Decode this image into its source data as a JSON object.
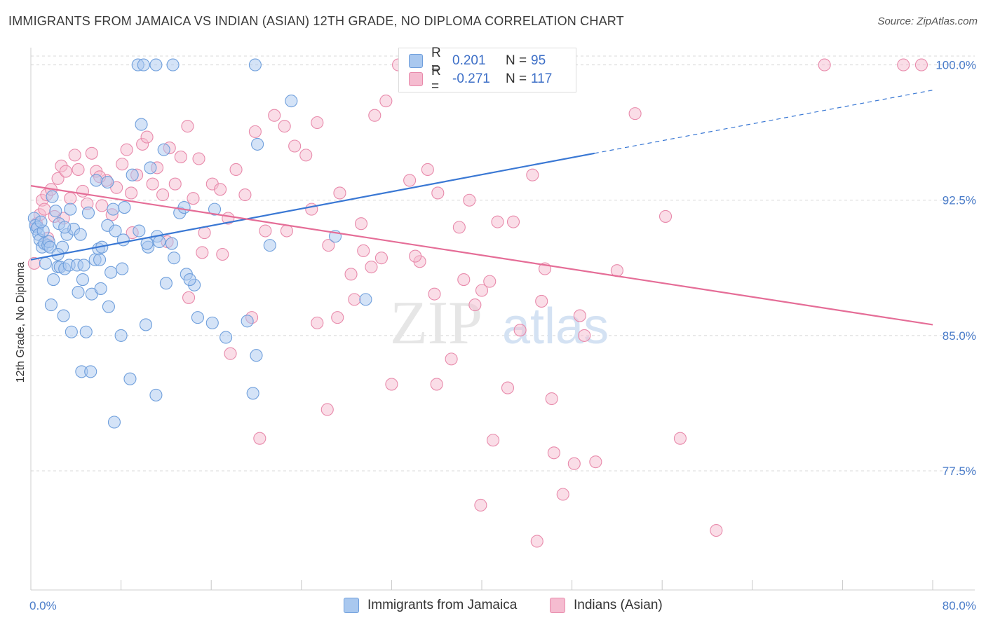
{
  "header": {
    "title": "IMMIGRANTS FROM JAMAICA VS INDIAN (ASIAN) 12TH GRADE, NO DIPLOMA CORRELATION CHART",
    "source": "Source: ZipAtlas.com"
  },
  "legend": {
    "rows": [
      {
        "r_label": "R =",
        "r_value": "0.201",
        "n_label": "N =",
        "n_value": "95"
      },
      {
        "r_label": "R =",
        "r_value": "-0.271",
        "n_label": "N =",
        "n_value": "117"
      }
    ]
  },
  "watermark": {
    "zip": "ZIP",
    "atlas": "atlas"
  },
  "colors": {
    "blue_fill": "#a9c8ef",
    "blue_stroke": "#6f9fdc",
    "blue_line": "#3a78d4",
    "pink_fill": "#f5bcd0",
    "pink_stroke": "#e88aab",
    "pink_line": "#e56d97",
    "tick_label": "#4a7cc9",
    "grid": "#d8d8d8"
  },
  "chart_data": {
    "type": "scatter",
    "title": "IMMIGRANTS FROM JAMAICA VS INDIAN (ASIAN) 12TH GRADE, NO DIPLOMA CORRELATION CHART",
    "xlabel": "",
    "ylabel": "12th Grade, No Diploma",
    "xlim": [
      0,
      80
    ],
    "ylim": [
      70.9,
      100.8
    ],
    "x_tick_labels": [
      "0.0%",
      "80.0%"
    ],
    "y_ticks": [
      100.0,
      92.5,
      85.0,
      77.5
    ],
    "y_tick_labels": [
      "100.0%",
      "92.5%",
      "85.0%",
      "77.5%"
    ],
    "grid": true,
    "legend_position": "bottom",
    "series": [
      {
        "name": "Immigrants from Jamaica",
        "color": "blue",
        "regression": {
          "x0": 0,
          "y0": 89.2,
          "x1": 50,
          "y1": 95.1,
          "dash_to_x": 80,
          "dash_to_y": 98.6
        },
        "points": [
          [
            0.3,
            91.5
          ],
          [
            0.4,
            91.1
          ],
          [
            0.5,
            90.9
          ],
          [
            0.6,
            91.0
          ],
          [
            0.7,
            90.6
          ],
          [
            0.8,
            90.3
          ],
          [
            1.0,
            89.9
          ],
          [
            1.2,
            90.1
          ],
          [
            1.3,
            89.0
          ],
          [
            1.5,
            90.0
          ],
          [
            1.6,
            90.2
          ],
          [
            1.7,
            89.9
          ],
          [
            1.9,
            92.7
          ],
          [
            2.0,
            88.1
          ],
          [
            2.2,
            91.9
          ],
          [
            2.4,
            88.8
          ],
          [
            2.5,
            91.2
          ],
          [
            2.6,
            88.8
          ],
          [
            2.8,
            89.9
          ],
          [
            3.0,
            88.7
          ],
          [
            3.2,
            90.6
          ],
          [
            3.4,
            88.9
          ],
          [
            3.5,
            92.0
          ],
          [
            3.8,
            90.9
          ],
          [
            4.1,
            88.9
          ],
          [
            4.4,
            90.6
          ],
          [
            4.6,
            88.1
          ],
          [
            4.7,
            88.9
          ],
          [
            5.1,
            91.8
          ],
          [
            5.7,
            89.2
          ],
          [
            6.0,
            89.8
          ],
          [
            6.1,
            89.2
          ],
          [
            6.3,
            89.9
          ],
          [
            6.8,
            91.1
          ],
          [
            7.1,
            88.5
          ],
          [
            7.3,
            92.0
          ],
          [
            7.5,
            90.8
          ],
          [
            8.2,
            90.3
          ],
          [
            8.3,
            92.1
          ],
          [
            9.0,
            93.9
          ],
          [
            9.6,
            90.8
          ],
          [
            10.4,
            89.9
          ],
          [
            10.6,
            94.3
          ],
          [
            11.2,
            90.5
          ],
          [
            11.4,
            90.2
          ],
          [
            11.8,
            95.3
          ],
          [
            12.5,
            90.1
          ],
          [
            13.2,
            91.8
          ],
          [
            13.8,
            88.4
          ],
          [
            14.5,
            87.8
          ],
          [
            14.8,
            86.0
          ],
          [
            1.8,
            86.7
          ],
          [
            3.6,
            85.2
          ],
          [
            5.4,
            87.3
          ],
          [
            6.9,
            86.6
          ],
          [
            8.0,
            85.0
          ],
          [
            10.2,
            85.6
          ],
          [
            12.0,
            87.9
          ],
          [
            14.1,
            88.1
          ],
          [
            16.1,
            85.7
          ],
          [
            17.3,
            84.9
          ],
          [
            19.2,
            85.8
          ],
          [
            20.0,
            83.9
          ],
          [
            4.5,
            83.0
          ],
          [
            5.3,
            83.0
          ],
          [
            8.8,
            82.6
          ],
          [
            11.1,
            81.7
          ],
          [
            19.7,
            81.8
          ],
          [
            7.4,
            80.2
          ],
          [
            9.5,
            100.0
          ],
          [
            10.0,
            100.0
          ],
          [
            11.1,
            100.0
          ],
          [
            12.6,
            100.0
          ],
          [
            19.9,
            100.0
          ],
          [
            23.1,
            98.0
          ],
          [
            20.1,
            95.6
          ],
          [
            9.8,
            96.7
          ],
          [
            5.8,
            93.6
          ],
          [
            6.8,
            93.5
          ],
          [
            3.0,
            91.0
          ],
          [
            13.6,
            92.1
          ],
          [
            16.3,
            92.0
          ],
          [
            21.2,
            90.0
          ],
          [
            27.0,
            90.5
          ],
          [
            29.7,
            87.0
          ],
          [
            1.1,
            90.8
          ],
          [
            0.9,
            91.3
          ],
          [
            2.4,
            89.5
          ],
          [
            4.2,
            87.4
          ],
          [
            6.2,
            87.6
          ],
          [
            8.1,
            88.7
          ],
          [
            10.3,
            90.1
          ],
          [
            12.7,
            89.3
          ],
          [
            2.9,
            86.1
          ],
          [
            4.9,
            85.2
          ]
        ]
      },
      {
        "name": "Indians (Asian)",
        "color": "pink",
        "regression": {
          "x0": 0,
          "y0": 93.3,
          "x1": 80,
          "y1": 85.6
        },
        "points": [
          [
            0.3,
            89.0
          ],
          [
            0.5,
            91.2
          ],
          [
            0.8,
            91.7
          ],
          [
            1.0,
            92.5
          ],
          [
            1.2,
            92.0
          ],
          [
            1.4,
            92.8
          ],
          [
            1.8,
            93.1
          ],
          [
            2.1,
            91.6
          ],
          [
            2.4,
            93.7
          ],
          [
            2.7,
            94.4
          ],
          [
            3.1,
            94.1
          ],
          [
            3.5,
            92.6
          ],
          [
            3.9,
            95.0
          ],
          [
            4.2,
            94.2
          ],
          [
            4.6,
            93.0
          ],
          [
            5.0,
            92.3
          ],
          [
            5.4,
            95.1
          ],
          [
            5.8,
            94.1
          ],
          [
            6.3,
            92.2
          ],
          [
            6.7,
            93.6
          ],
          [
            7.2,
            91.7
          ],
          [
            7.6,
            93.2
          ],
          [
            8.1,
            94.5
          ],
          [
            8.5,
            95.3
          ],
          [
            8.9,
            92.9
          ],
          [
            9.4,
            93.9
          ],
          [
            9.9,
            95.6
          ],
          [
            10.3,
            96.0
          ],
          [
            10.8,
            93.4
          ],
          [
            11.2,
            94.3
          ],
          [
            11.7,
            92.8
          ],
          [
            12.3,
            95.4
          ],
          [
            12.8,
            93.4
          ],
          [
            13.3,
            94.9
          ],
          [
            13.9,
            96.6
          ],
          [
            14.4,
            92.6
          ],
          [
            14.9,
            94.8
          ],
          [
            15.4,
            90.7
          ],
          [
            16.1,
            93.4
          ],
          [
            16.8,
            93.1
          ],
          [
            17.5,
            91.5
          ],
          [
            18.2,
            94.2
          ],
          [
            19.0,
            92.8
          ],
          [
            19.9,
            96.3
          ],
          [
            20.8,
            90.8
          ],
          [
            21.6,
            97.2
          ],
          [
            22.5,
            96.6
          ],
          [
            23.4,
            95.5
          ],
          [
            24.4,
            95.0
          ],
          [
            25.4,
            96.8
          ],
          [
            26.4,
            90.0
          ],
          [
            27.4,
            92.9
          ],
          [
            28.4,
            88.4
          ],
          [
            29.5,
            89.7
          ],
          [
            30.5,
            97.2
          ],
          [
            31.5,
            98.0
          ],
          [
            32.6,
            100.0
          ],
          [
            33.6,
            93.6
          ],
          [
            34.5,
            89.1
          ],
          [
            35.2,
            94.2
          ],
          [
            36.1,
            92.9
          ],
          [
            37.3,
            83.7
          ],
          [
            38.0,
            91.0
          ],
          [
            38.9,
            92.5
          ],
          [
            40.0,
            87.5
          ],
          [
            41.4,
            91.3
          ],
          [
            42.8,
            91.3
          ],
          [
            43.4,
            85.3
          ],
          [
            44.5,
            93.9
          ],
          [
            45.3,
            86.9
          ],
          [
            46.2,
            81.5
          ],
          [
            47.2,
            76.2
          ],
          [
            48.2,
            77.9
          ],
          [
            49.1,
            85.0
          ],
          [
            50.1,
            78.0
          ],
          [
            52.0,
            88.6
          ],
          [
            53.6,
            97.3
          ],
          [
            56.3,
            91.6
          ],
          [
            57.6,
            79.3
          ],
          [
            60.8,
            74.2
          ],
          [
            70.4,
            100.0
          ],
          [
            77.4,
            100.0
          ],
          [
            79.0,
            100.0
          ],
          [
            1.5,
            90.4
          ],
          [
            2.9,
            91.5
          ],
          [
            6.1,
            93.8
          ],
          [
            9.0,
            90.7
          ],
          [
            12.1,
            90.2
          ],
          [
            15.2,
            89.6
          ],
          [
            17.7,
            84.0
          ],
          [
            20.3,
            79.3
          ],
          [
            22.7,
            90.8
          ],
          [
            25.4,
            85.7
          ],
          [
            26.3,
            80.9
          ],
          [
            27.2,
            86.0
          ],
          [
            28.7,
            87.0
          ],
          [
            30.2,
            88.8
          ],
          [
            31.1,
            89.3
          ],
          [
            34.1,
            89.4
          ],
          [
            36.0,
            82.3
          ],
          [
            38.4,
            88.1
          ],
          [
            39.4,
            86.7
          ],
          [
            39.9,
            75.6
          ],
          [
            41.0,
            79.2
          ],
          [
            42.3,
            82.1
          ],
          [
            44.9,
            73.6
          ],
          [
            46.4,
            78.5
          ],
          [
            48.7,
            86.1
          ],
          [
            17.0,
            89.5
          ],
          [
            19.6,
            86.0
          ],
          [
            14.0,
            87.1
          ],
          [
            24.9,
            92.0
          ],
          [
            29.3,
            91.2
          ],
          [
            32.0,
            82.3
          ],
          [
            35.8,
            87.3
          ],
          [
            40.7,
            88.0
          ],
          [
            45.6,
            88.7
          ]
        ]
      }
    ]
  }
}
